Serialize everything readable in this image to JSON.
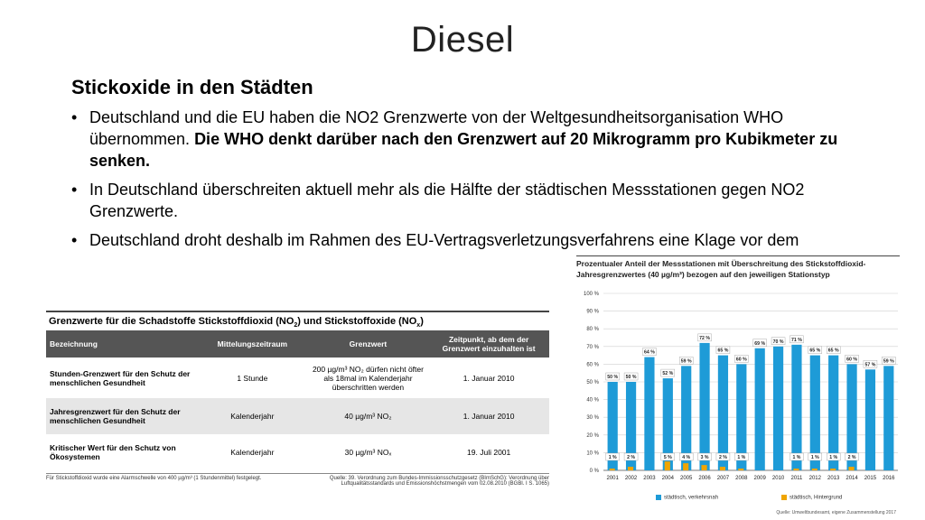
{
  "slide": {
    "title": "Diesel",
    "subtitle": "Stickoxide in den Städten",
    "bullets": [
      {
        "text": "Deutschland und die EU haben die NO2 Grenzwerte von der Weltgesundheitsorganisation WHO übernommen. ",
        "bold": "Die WHO denkt darüber nach den Grenzwert auf 20 Mikrogramm pro Kubikmeter zu senken."
      },
      {
        "text": "In Deutschland überschreiten aktuell mehr als die Hälfte der städtischen Messstationen gegen NO2 Grenzwerte.",
        "bold": ""
      },
      {
        "text": "Deutschland droht deshalb im Rahmen des EU-Vertragsverletzungsverfahrens eine Klage vor dem",
        "bold": ""
      }
    ]
  },
  "table": {
    "title_a": "Grenzwerte für die Schadstoffe Stickstoffdioxid (NO",
    "title_b": ") und Stickstoffoxide (NO",
    "title_c": ")",
    "title_sub1": "2",
    "title_sub2": "x",
    "headers": [
      "Bezeichnung",
      "Mittelungszeitraum",
      "Grenzwert",
      "Zeitpunkt, ab dem der Grenzwert einzuhalten ist"
    ],
    "rows": [
      [
        "Stunden-Grenzwert für den Schutz der menschlichen Gesundheit",
        "1 Stunde",
        "200 µg/m³ NO₂ dürfen nicht öfter als 18mal im Kalenderjahr überschritten werden",
        "1. Januar 2010"
      ],
      [
        "Jahresgrenzwert für den Schutz der menschlichen Gesundheit",
        "Kalenderjahr",
        "40 µg/m³ NO₂",
        "1. Januar 2010"
      ],
      [
        "Kritischer Wert für den Schutz von Ökosystemen",
        "Kalenderjahr",
        "30 µg/m³ NOₓ",
        "19. Juli 2001"
      ]
    ],
    "footnote_left": "Für Stickstoffdioxid wurde eine Alarmschwelle von 400 µg/m³ (1 Stundenmittel) festgelegt.",
    "footnote_right": "Quelle: 39. Verordnung zum Bundes-Immissionsschutzgesetz (BImSchG): Verordnung über Luftqualitätsstandards und Emissionshöchstmengen vom 02.08.2010 (BGBl. I S. 1065)"
  },
  "chart_data": {
    "type": "bar",
    "title": "Prozentualer Anteil der Messstationen mit Überschreitung des Stickstoffdioxid-Jahresgrenzwertes (40 µg/m³) bezogen auf den jeweiligen Stationstyp",
    "categories": [
      "2001",
      "2002",
      "2003",
      "2004",
      "2005",
      "2006",
      "2007",
      "2008",
      "2009",
      "2010",
      "2011",
      "2012",
      "2013",
      "2014",
      "2015",
      "2016"
    ],
    "series": [
      {
        "name": "städtisch, verkehrsnah",
        "color": "#1e9bd7",
        "values": [
          50,
          50,
          64,
          52,
          59,
          72,
          65,
          60,
          69,
          70,
          71,
          65,
          65,
          60,
          57,
          59
        ],
        "labels": [
          "50 %",
          "50 %",
          "64 %",
          "52 %",
          "59 %",
          "72 %",
          "65 %",
          "60 %",
          "69 %",
          "70 %",
          "71 %",
          "65 %",
          "65 %",
          "60 %",
          "57 %",
          "59 %"
        ]
      },
      {
        "name": "städtisch, Hintergrund",
        "color": "#f0a500",
        "values": [
          1,
          2,
          0,
          5,
          4,
          3,
          2,
          1,
          0,
          0,
          1,
          1,
          1,
          2,
          0,
          0
        ],
        "labels": [
          "1 %",
          "2 %",
          "",
          "5 %",
          "4 %",
          "3 %",
          "2 %",
          "1 %",
          "",
          "",
          "1 %",
          "1 %",
          "1 %",
          "2 %",
          "",
          ""
        ]
      }
    ],
    "ylim": [
      0,
      100
    ],
    "yticks": [
      "0 %",
      "10 %",
      "20 %",
      "30 %",
      "40 %",
      "50 %",
      "60 %",
      "70 %",
      "80 %",
      "90 %",
      "100 %"
    ],
    "grid": true,
    "legend_position": "bottom",
    "source": "Quelle: Umweltbundesamt, eigene Zusammenstellung 2017"
  }
}
